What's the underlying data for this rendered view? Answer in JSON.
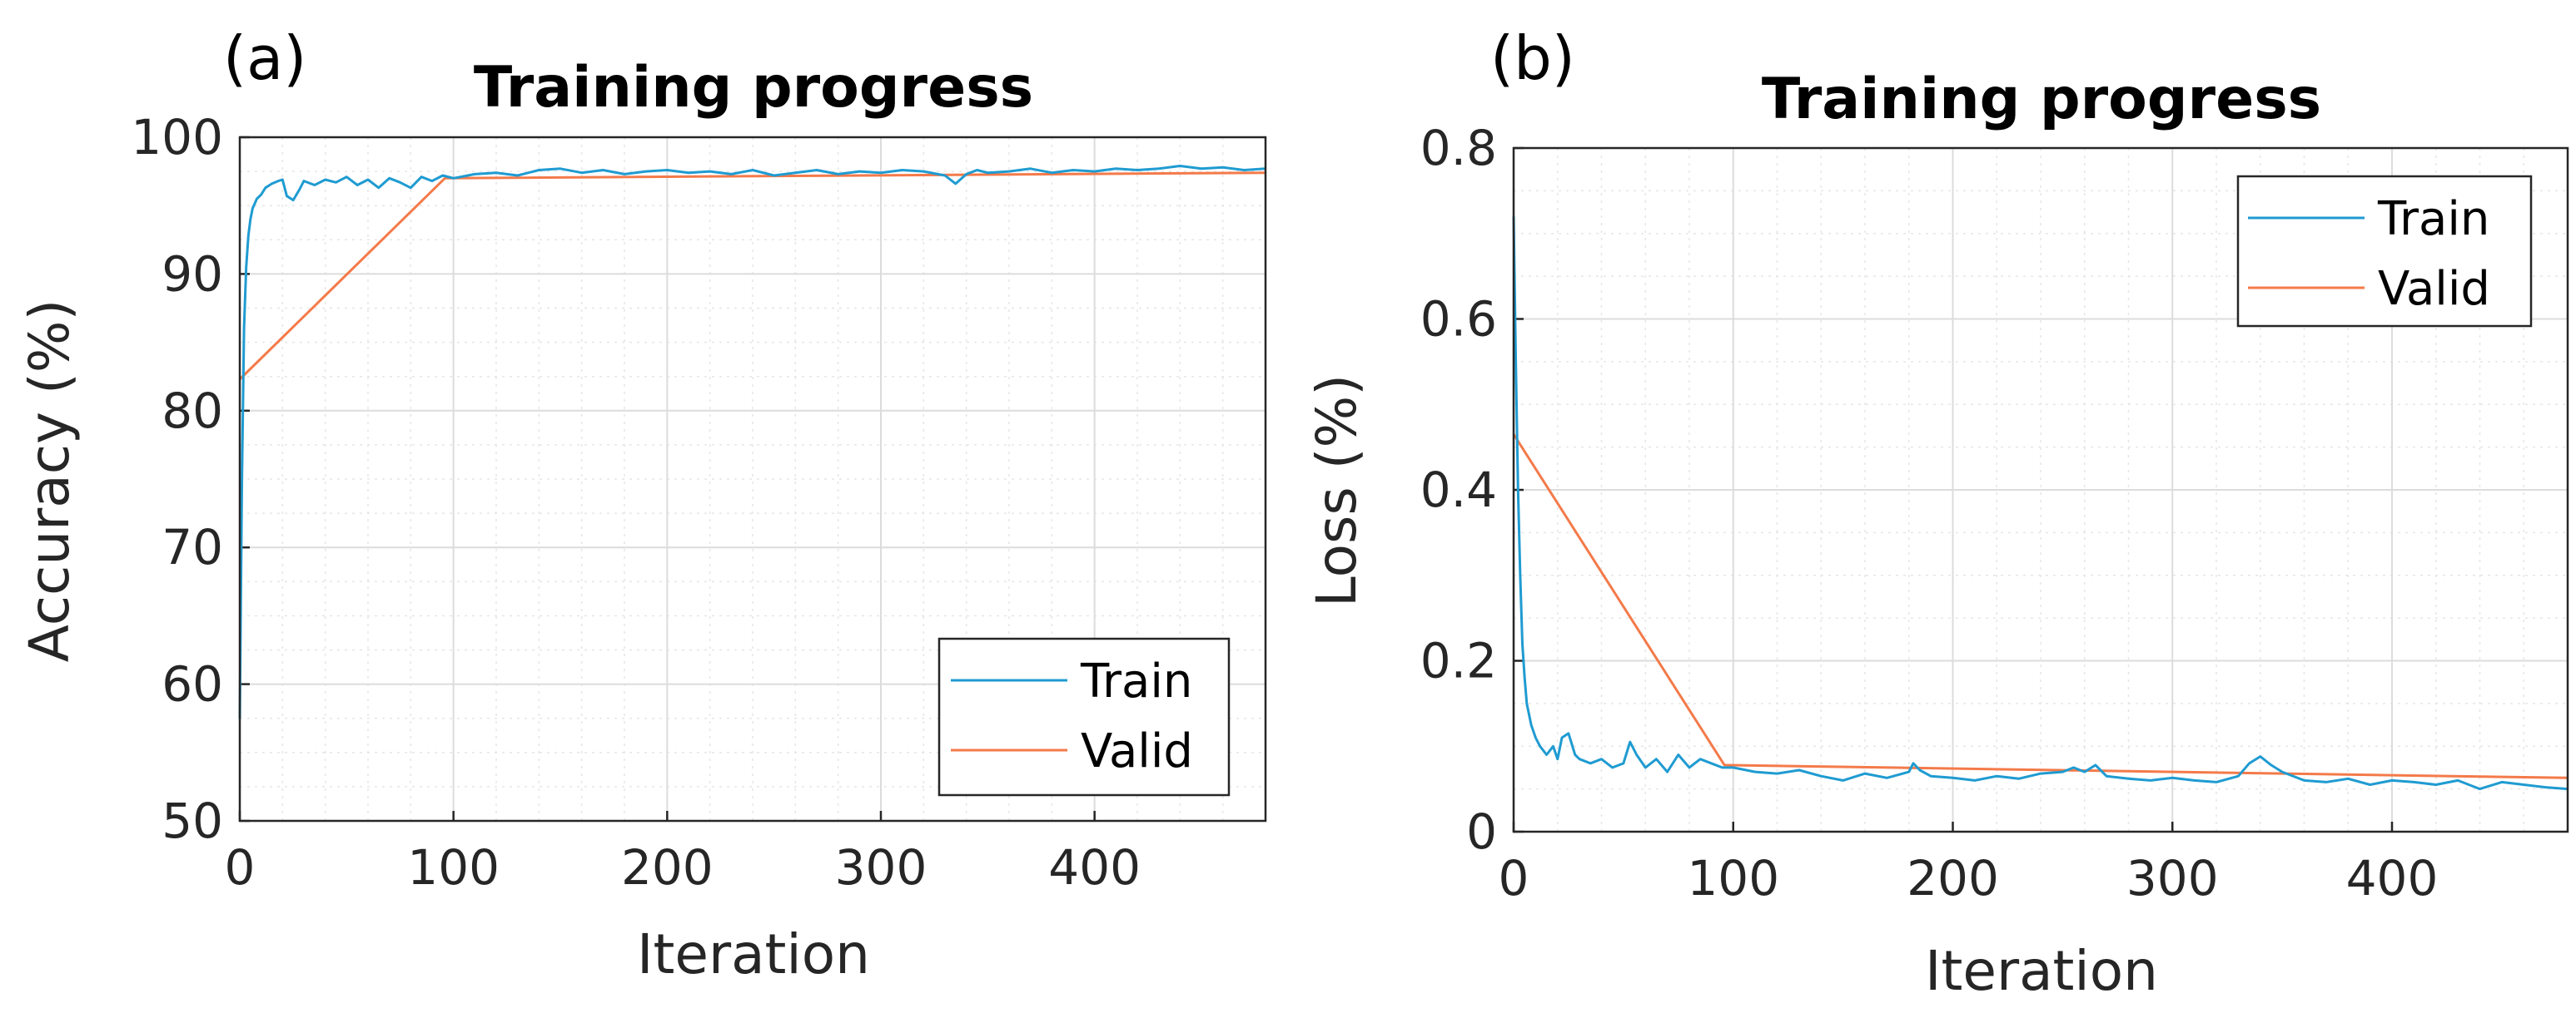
{
  "colors": {
    "train": "#1f9bd1",
    "valid": "#f47a4a",
    "grid": "#dcdcdc",
    "axis": "#262626"
  },
  "chart_data": [
    {
      "id": "a",
      "type": "line",
      "panel_label": "(a)",
      "title": "Training progress",
      "xlabel": "Iteration",
      "ylabel": "Accuracy (%)",
      "xlim": [
        0,
        480
      ],
      "ylim": [
        50,
        100
      ],
      "xticks": [
        0,
        100,
        200,
        300,
        400
      ],
      "xtick_labels": [
        "0",
        "100",
        "200",
        "300",
        "400"
      ],
      "yticks": [
        50,
        60,
        70,
        80,
        90,
        100
      ],
      "ytick_labels": [
        "50",
        "60",
        "70",
        "80",
        "90",
        "100"
      ],
      "legend": {
        "location": "bottom-right",
        "entries": [
          "Train",
          "Valid"
        ]
      },
      "series": [
        {
          "name": "Train",
          "x": [
            0,
            1,
            2,
            3,
            4,
            5,
            6,
            8,
            10,
            12,
            15,
            18,
            20,
            22,
            25,
            28,
            30,
            35,
            40,
            45,
            50,
            55,
            60,
            65,
            70,
            75,
            80,
            85,
            90,
            95,
            100,
            110,
            120,
            130,
            140,
            150,
            160,
            170,
            180,
            190,
            200,
            210,
            220,
            230,
            240,
            250,
            260,
            270,
            280,
            290,
            300,
            310,
            320,
            330,
            335,
            340,
            345,
            350,
            360,
            370,
            380,
            390,
            400,
            410,
            420,
            430,
            440,
            450,
            460,
            470,
            480
          ],
          "values": [
            57.5,
            75,
            86,
            90.5,
            92.8,
            94,
            94.8,
            95.5,
            95.8,
            96.3,
            96.6,
            96.8,
            96.9,
            95.7,
            95.4,
            96.2,
            96.8,
            96.5,
            96.9,
            96.7,
            97.1,
            96.5,
            96.9,
            96.3,
            97,
            96.7,
            96.3,
            97.1,
            96.8,
            97.2,
            97,
            97.3,
            97.4,
            97.2,
            97.6,
            97.7,
            97.4,
            97.6,
            97.3,
            97.5,
            97.6,
            97.4,
            97.5,
            97.3,
            97.6,
            97.2,
            97.4,
            97.6,
            97.3,
            97.5,
            97.4,
            97.6,
            97.5,
            97.2,
            96.6,
            97.3,
            97.6,
            97.4,
            97.5,
            97.7,
            97.4,
            97.6,
            97.5,
            97.7,
            97.6,
            97.7,
            97.9,
            97.7,
            97.8,
            97.6,
            97.7
          ]
        },
        {
          "name": "Valid",
          "x": [
            0,
            96,
            480
          ],
          "values": [
            82.3,
            97.0,
            97.4
          ]
        }
      ]
    },
    {
      "id": "b",
      "type": "line",
      "panel_label": "(b)",
      "title": "Training progress",
      "xlabel": "Iteration",
      "ylabel": "Loss (%)",
      "xlim": [
        0,
        480
      ],
      "ylim": [
        0,
        0.8
      ],
      "xticks": [
        0,
        100,
        200,
        300,
        400
      ],
      "xtick_labels": [
        "0",
        "100",
        "200",
        "300",
        "400"
      ],
      "yticks": [
        0,
        0.2,
        0.4,
        0.6,
        0.8
      ],
      "ytick_labels": [
        "0",
        "0.2",
        "0.4",
        "0.6",
        "0.8"
      ],
      "legend": {
        "location": "top-right",
        "entries": [
          "Train",
          "Valid"
        ]
      },
      "series": [
        {
          "name": "Train",
          "x": [
            0,
            1,
            2,
            3,
            4,
            5,
            6,
            8,
            10,
            12,
            15,
            18,
            20,
            22,
            25,
            28,
            30,
            35,
            40,
            45,
            50,
            53,
            56,
            60,
            65,
            70,
            75,
            80,
            85,
            90,
            95,
            100,
            110,
            120,
            130,
            140,
            150,
            160,
            170,
            180,
            182,
            185,
            190,
            200,
            210,
            220,
            230,
            240,
            250,
            255,
            260,
            265,
            270,
            280,
            290,
            300,
            310,
            320,
            330,
            335,
            340,
            345,
            350,
            360,
            370,
            380,
            390,
            400,
            410,
            420,
            430,
            440,
            450,
            460,
            470,
            480
          ],
          "values": [
            0.72,
            0.55,
            0.4,
            0.3,
            0.22,
            0.18,
            0.15,
            0.125,
            0.11,
            0.1,
            0.09,
            0.1,
            0.085,
            0.11,
            0.115,
            0.09,
            0.085,
            0.08,
            0.085,
            0.075,
            0.08,
            0.105,
            0.09,
            0.075,
            0.085,
            0.07,
            0.09,
            0.075,
            0.085,
            0.08,
            0.075,
            0.075,
            0.07,
            0.068,
            0.072,
            0.065,
            0.06,
            0.068,
            0.063,
            0.07,
            0.08,
            0.072,
            0.065,
            0.063,
            0.06,
            0.065,
            0.062,
            0.068,
            0.07,
            0.075,
            0.07,
            0.078,
            0.065,
            0.062,
            0.06,
            0.063,
            0.06,
            0.058,
            0.065,
            0.08,
            0.088,
            0.078,
            0.07,
            0.06,
            0.058,
            0.062,
            0.055,
            0.06,
            0.058,
            0.055,
            0.06,
            0.05,
            0.058,
            0.055,
            0.052,
            0.05
          ]
        },
        {
          "name": "Valid",
          "x": [
            0,
            96,
            480
          ],
          "values": [
            0.465,
            0.078,
            0.063
          ]
        }
      ]
    }
  ]
}
